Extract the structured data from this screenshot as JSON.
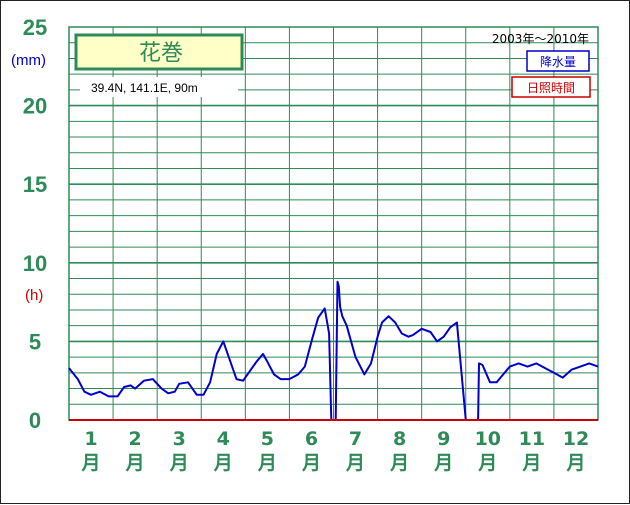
{
  "chart_data": {
    "type": "line",
    "station": "花巻",
    "location": "39.4N,  141.1E,  90m",
    "period": "2003年〜2010年",
    "y_unit_rain": "(mm)",
    "y_unit_sun": "(h)",
    "yticks": [
      "0",
      "5",
      "10",
      "15",
      "20",
      "25"
    ],
    "ylim": [
      0,
      25
    ],
    "xlim": [
      0.5,
      12.5
    ],
    "month_numbers": [
      "1",
      "2",
      "3",
      "4",
      "5",
      "6",
      "7",
      "8",
      "9",
      "10",
      "11",
      "12"
    ],
    "month_unit": "月",
    "legend": [
      "降水量",
      "日照時間"
    ],
    "grid": true,
    "series": [
      {
        "name": "降水量",
        "color": "#0000cc",
        "x": [
          0.5,
          0.7,
          0.85,
          1.0,
          1.2,
          1.4,
          1.6,
          1.75,
          1.9,
          2.0,
          2.2,
          2.4,
          2.6,
          2.75,
          2.9,
          3.0,
          3.2,
          3.4,
          3.55,
          3.7,
          3.85,
          4.0,
          4.15,
          4.3,
          4.45,
          4.6,
          4.75,
          4.9,
          5.0,
          5.15,
          5.3,
          5.5,
          5.7,
          5.85,
          6.0,
          6.15,
          6.3,
          6.4,
          6.45,
          6.47,
          6.55,
          6.59,
          6.62,
          6.65,
          6.7,
          6.8,
          7.0,
          7.2,
          7.35,
          7.5,
          7.6,
          7.75,
          7.9,
          8.05,
          8.2,
          8.3,
          8.5,
          8.7,
          8.85,
          9.0,
          9.15,
          9.3,
          9.5,
          9.7,
          9.78,
          9.8,
          9.88,
          10.05,
          10.2,
          10.35,
          10.5,
          10.7,
          10.9,
          11.1,
          11.3,
          11.5,
          11.7,
          11.9,
          12.1,
          12.3,
          12.5
        ],
        "values": [
          3.3,
          2.6,
          1.8,
          1.6,
          1.8,
          1.5,
          1.5,
          2.1,
          2.2,
          2.0,
          2.5,
          2.6,
          2.0,
          1.7,
          1.8,
          2.3,
          2.4,
          1.6,
          1.6,
          2.4,
          4.2,
          5.0,
          3.8,
          2.6,
          2.5,
          3.1,
          3.7,
          4.2,
          3.7,
          2.9,
          2.6,
          2.6,
          2.9,
          3.4,
          5.0,
          6.5,
          7.1,
          5.5,
          0,
          0,
          0,
          8.8,
          8.5,
          7.2,
          6.6,
          6.0,
          4.0,
          2.9,
          3.6,
          5.3,
          6.2,
          6.6,
          6.2,
          5.5,
          5.3,
          5.4,
          5.8,
          5.6,
          5.0,
          5.3,
          5.9,
          6.2,
          0,
          0,
          0,
          3.6,
          3.5,
          2.4,
          2.4,
          2.9,
          3.4,
          3.6,
          3.4,
          3.6,
          3.3,
          3.0,
          2.7,
          3.2,
          3.4,
          3.6,
          3.4
        ]
      },
      {
        "name": "日照時間",
        "color": "#cc0000",
        "x": [
          0.5,
          12.5
        ],
        "values": [
          0,
          0
        ]
      }
    ]
  }
}
